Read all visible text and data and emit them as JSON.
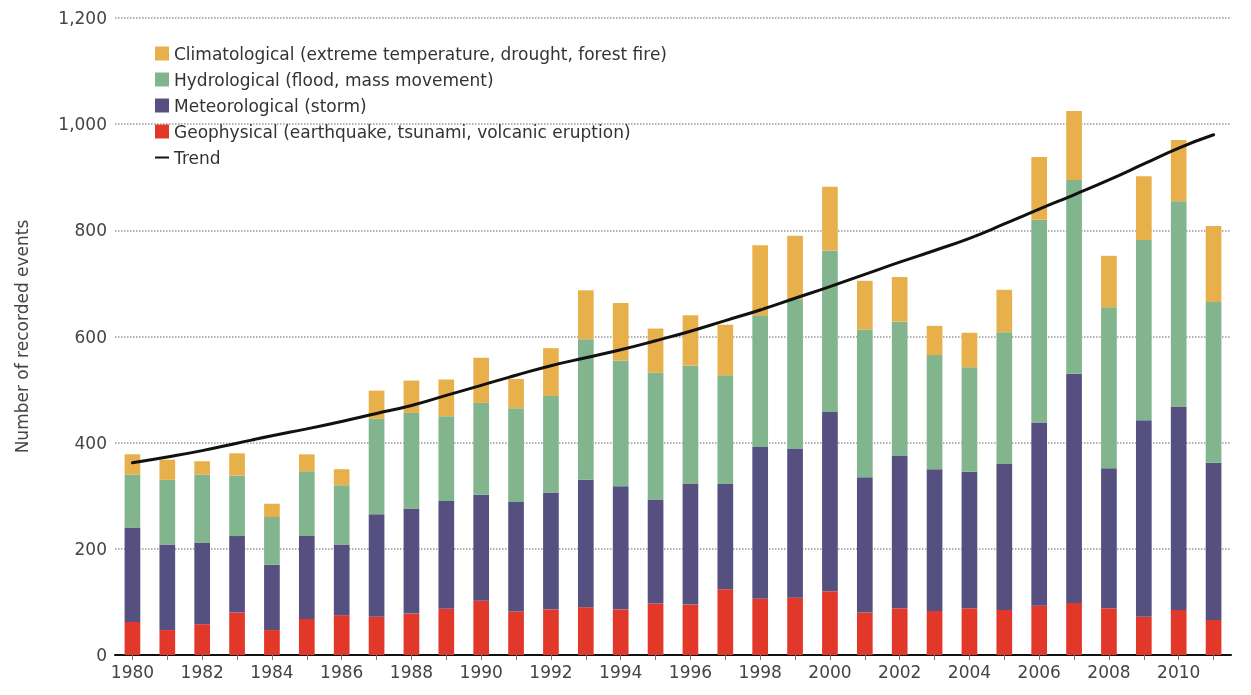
{
  "chart_data": {
    "type": "bar",
    "ylabel": "Number of recorded events",
    "stacked": true,
    "grid": "y",
    "legend": "top left",
    "line_style": "solid",
    "marker": "none",
    "categories": [
      "1980",
      null,
      "1982",
      null,
      "1984",
      null,
      "1986",
      null,
      "1988",
      null,
      "1990",
      null,
      "1992",
      null,
      "1994",
      null,
      "1996",
      null,
      "1998",
      null,
      "2000",
      null,
      "2002",
      null,
      "2004",
      null,
      "2006",
      null,
      "2008",
      null,
      "2010",
      null
    ],
    "ylim": [
      0,
      1200
    ],
    "yticks": [
      0,
      200,
      400,
      600,
      800,
      {
        "value": 1000,
        "label": "1,000"
      },
      {
        "value": 1200,
        "label": "1,200"
      }
    ],
    "series": [
      {
        "name": "Geophysical (earthquake, tsunami, volcanic eruption)",
        "color": "#e2382a",
        "values": [
          62,
          47,
          58,
          80,
          47,
          68,
          75,
          72,
          78,
          87,
          102,
          82,
          86,
          90,
          86,
          97,
          95,
          124,
          106,
          108,
          120,
          80,
          88,
          83,
          88,
          85,
          93,
          98,
          88,
          72,
          85,
          66
        ]
      },
      {
        "name": "Meteorological (storm)",
        "color": "#555080",
        "values": [
          178,
          161,
          154,
          144,
          123,
          156,
          133,
          193,
          198,
          203,
          200,
          206,
          220,
          240,
          232,
          196,
          227,
          198,
          286,
          280,
          338,
          255,
          287,
          267,
          257,
          275,
          345,
          432,
          264,
          370,
          383,
          296
        ]
      },
      {
        "name": "Hydrological (flood, mass movement)",
        "color": "#82b48e",
        "values": [
          100,
          122,
          128,
          114,
          90,
          122,
          112,
          180,
          180,
          160,
          173,
          177,
          182,
          265,
          237,
          239,
          223,
          205,
          248,
          282,
          304,
          278,
          253,
          215,
          197,
          248,
          382,
          365,
          303,
          340,
          387,
          303
        ]
      },
      {
        "name": "Climatological (extreme temperature, drought, forest fire)",
        "color": "#e8b04a",
        "values": [
          38,
          38,
          25,
          42,
          25,
          32,
          30,
          53,
          61,
          69,
          85,
          55,
          90,
          92,
          108,
          83,
          95,
          95,
          132,
          120,
          120,
          92,
          84,
          55,
          65,
          80,
          118,
          130,
          97,
          120,
          115,
          143
        ]
      },
      {
        "name": "Trend",
        "type": "line",
        "color": "#111111",
        "values": [
          362,
          373,
          385,
          399,
          413,
          426,
          440,
          455,
          470,
          489,
          508,
          527,
          545,
          560,
          575,
          592,
          610,
          630,
          650,
          672,
          694,
          717,
          740,
          762,
          785,
          812,
          840,
          867,
          895,
          925,
          955,
          980
        ]
      }
    ]
  }
}
